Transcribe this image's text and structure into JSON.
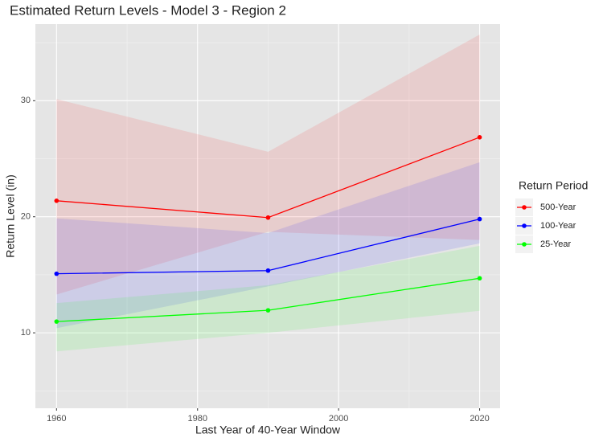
{
  "chart_data": {
    "type": "ribbon-line",
    "title": "Estimated Return Levels - Model 3 - Region 2",
    "x_label": "Last Year of 40-Year Window",
    "y_label": "Return Level (in)",
    "legend_title": "Return Period",
    "x": [
      1960,
      1990,
      2020
    ],
    "xlim": [
      1957,
      2022.9
    ],
    "xticks": [
      1960,
      1980,
      2000,
      2020
    ],
    "ylim": [
      3.5,
      36.6
    ],
    "yticks": [
      10,
      20,
      30
    ],
    "grid": true,
    "series": [
      {
        "name": "500-Year",
        "color": "#ff0000",
        "values": [
          21.38,
          19.93,
          26.85
        ],
        "lower": [
          13.3,
          18.7,
          18.0
        ],
        "upper": [
          30.14,
          25.6,
          35.7
        ]
      },
      {
        "name": "100-Year",
        "color": "#0000ff",
        "values": [
          15.09,
          15.36,
          19.8
        ],
        "lower": [
          10.4,
          14.0,
          17.7
        ],
        "upper": [
          19.86,
          18.6,
          24.7
        ]
      },
      {
        "name": "25-Year",
        "color": "#00ff00",
        "values": [
          10.97,
          11.94,
          14.7
        ],
        "lower": [
          8.4,
          10.0,
          11.9
        ],
        "upper": [
          12.56,
          14.1,
          17.5
        ]
      }
    ]
  }
}
